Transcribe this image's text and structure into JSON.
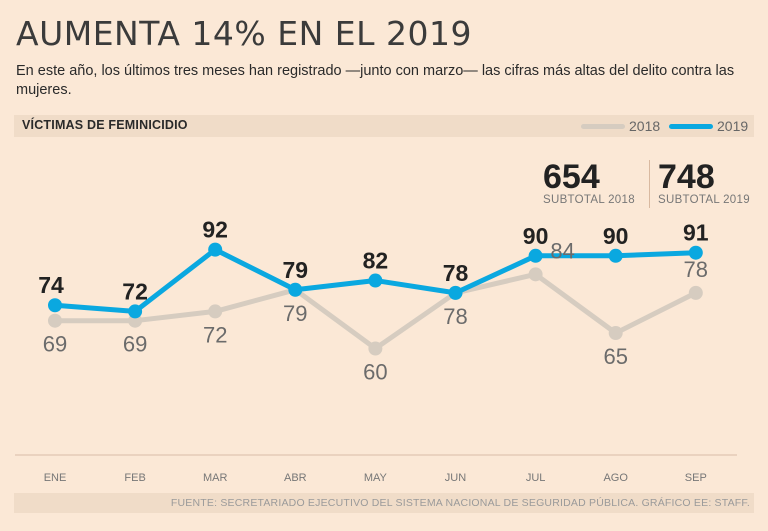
{
  "title": "AUMENTA 14% EN EL 2019",
  "subtitle": "En este año, los últimos tres meses han registrado —junto con marzo— las cifras más altas del delito contra las mujeres.",
  "section_label": "VÍCTIMAS DE FEMINICIDIO",
  "subtotals": [
    {
      "value": "654",
      "label": "SUBTOTAL 2018"
    },
    {
      "value": "748",
      "label": "SUBTOTAL 2019"
    }
  ],
  "source": "FUENTE: SECRETARIADO EJECUTIVO DEL SISTEMA NACIONAL DE SEGURIDAD PÚBLICA. GRÁFICO EE: STAFF.",
  "colors": {
    "s2018": "#d6ccc0",
    "s2019": "#0aa8e0",
    "label2018": "#6b6b6b",
    "label2019": "#222222"
  },
  "chart_data": {
    "type": "line",
    "title": "VÍCTIMAS DE FEMINICIDIO",
    "categories": [
      "ENE",
      "FEB",
      "MAR",
      "ABR",
      "MAY",
      "JUN",
      "JUL",
      "AGO",
      "SEP"
    ],
    "series": [
      {
        "name": "2018",
        "values": [
          69,
          69,
          72,
          79,
          60,
          78,
          84,
          65,
          78
        ]
      },
      {
        "name": "2019",
        "values": [
          74,
          72,
          92,
          79,
          82,
          78,
          90,
          90,
          91
        ]
      }
    ],
    "ylim": [
      55,
      100
    ],
    "legend": "top-right"
  }
}
